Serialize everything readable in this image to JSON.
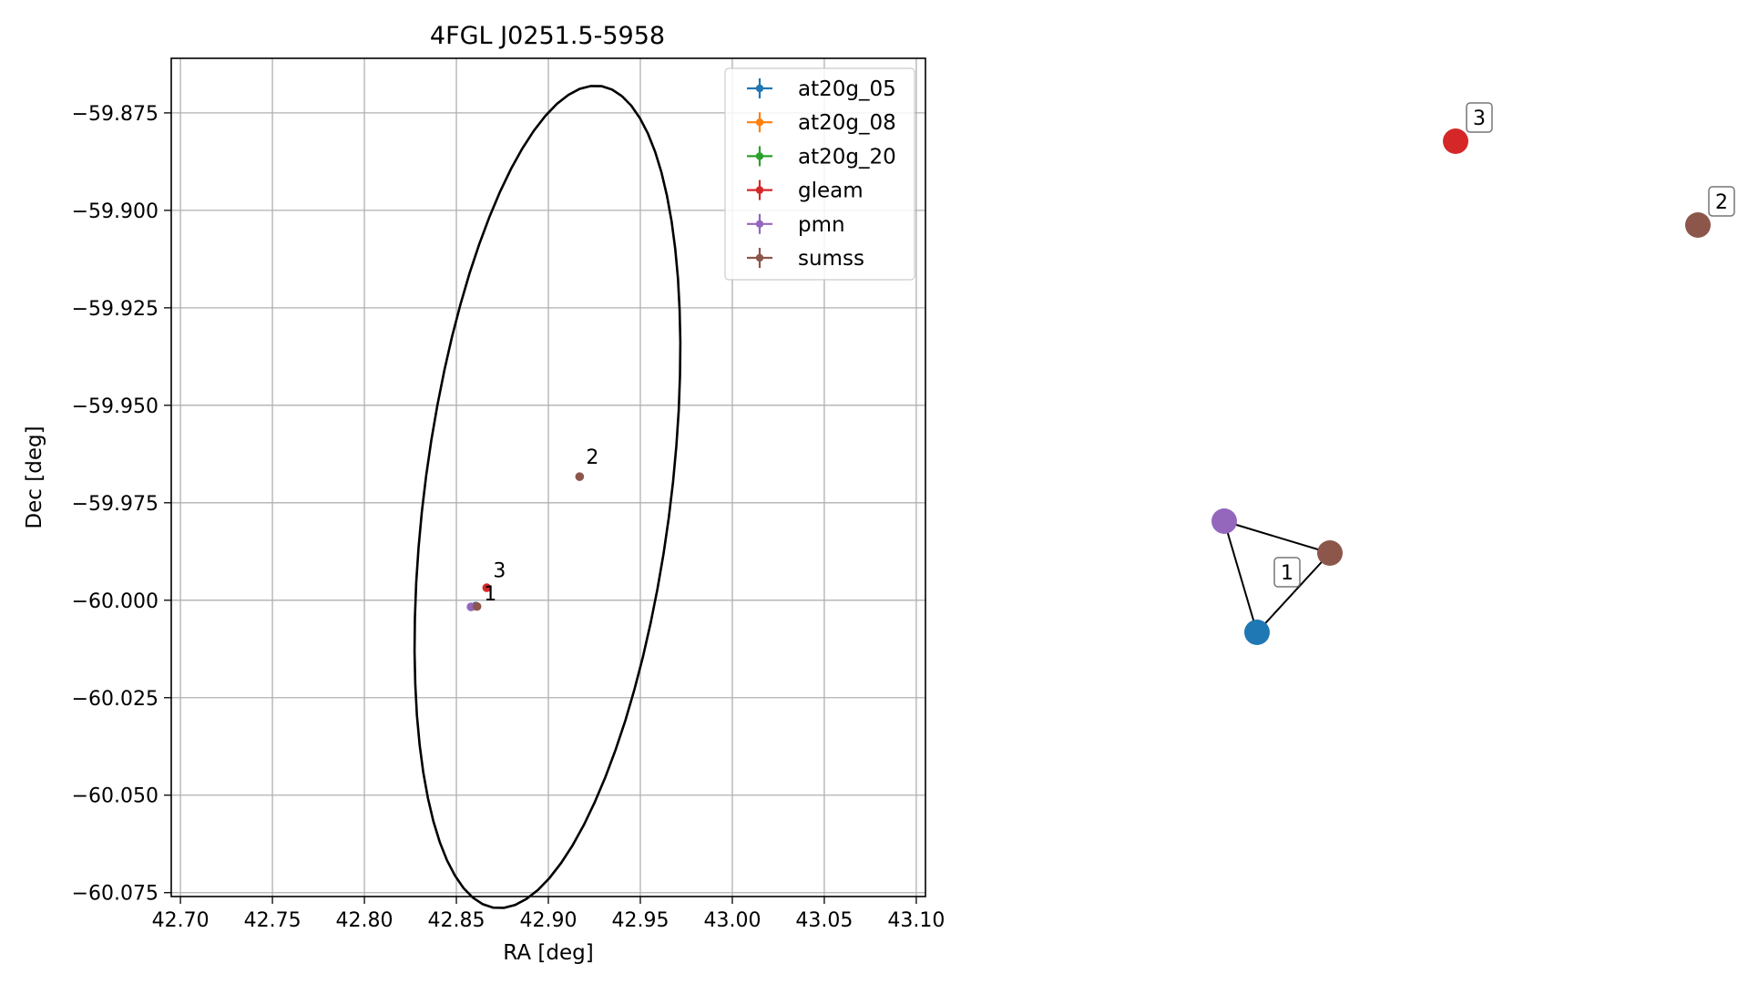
{
  "chart_data": [
    {
      "type": "scatter",
      "title": "4FGL J0251.5-5958",
      "xlabel": "RA [deg]",
      "ylabel": "Dec [deg]",
      "xlim": [
        42.695,
        43.105
      ],
      "ylim": [
        -60.076,
        -59.861
      ],
      "xticks": [
        42.7,
        42.75,
        42.8,
        42.85,
        42.9,
        42.95,
        43.0,
        43.05,
        43.1
      ],
      "xtick_labels": [
        "42.70",
        "42.75",
        "42.80",
        "42.85",
        "42.90",
        "42.95",
        "43.00",
        "43.05",
        "43.10"
      ],
      "yticks": [
        -59.875,
        -59.9,
        -59.925,
        -59.95,
        -59.975,
        -60.0,
        -60.025,
        -60.05,
        -60.075
      ],
      "ytick_labels": [
        "−59.875",
        "−59.900",
        "−59.925",
        "−59.950",
        "−59.975",
        "−60.000",
        "−60.025",
        "−60.050",
        "−60.075"
      ],
      "grid": true,
      "legend_position": "top-right",
      "ellipse": {
        "center": [
          42.8995,
          -59.9735
        ],
        "semi_axes": [
          0.1105,
          0.0643
        ],
        "angle_deg": 68.5,
        "color": "#000000"
      },
      "series": [
        {
          "name": "at20g_05",
          "color": "#1f77b4",
          "points": [
            [
              42.8605,
              -60.0015
            ]
          ]
        },
        {
          "name": "at20g_08",
          "color": "#ff7f0e",
          "points": []
        },
        {
          "name": "at20g_20",
          "color": "#2ca02c",
          "points": []
        },
        {
          "name": "gleam",
          "color": "#d62728",
          "points": [
            [
              42.8665,
              -59.9968
            ]
          ]
        },
        {
          "name": "pmn",
          "color": "#9467bd",
          "points": [
            [
              42.858,
              -60.0017
            ]
          ]
        },
        {
          "name": "sumss",
          "color": "#8c564b",
          "points": [
            [
              42.8612,
              -60.0016
            ],
            [
              42.917,
              -59.9683
            ]
          ]
        }
      ],
      "annotations": [
        {
          "text": "1",
          "x": 42.862,
          "y": -60.0005
        },
        {
          "text": "2",
          "x": 42.9175,
          "y": -59.9655
        },
        {
          "text": "3",
          "x": 42.867,
          "y": -59.9945
        }
      ]
    },
    {
      "type": "graph",
      "nodes": [
        {
          "id": "at20g_05",
          "color": "#1f77b4"
        },
        {
          "id": "pmn",
          "color": "#9467bd"
        },
        {
          "id": "sumss_1",
          "color": "#8c564b"
        },
        {
          "id": "gleam_3",
          "color": "#d62728"
        },
        {
          "id": "sumss_2",
          "color": "#8c564b"
        }
      ],
      "edges": [
        [
          "pmn",
          "sumss_1"
        ],
        [
          "pmn",
          "at20g_05"
        ],
        [
          "at20g_05",
          "sumss_1"
        ]
      ],
      "labels": [
        {
          "text": "1",
          "node": "cluster1"
        },
        {
          "text": "2",
          "node": "sumss_2"
        },
        {
          "text": "3",
          "node": "gleam_3"
        }
      ]
    }
  ]
}
